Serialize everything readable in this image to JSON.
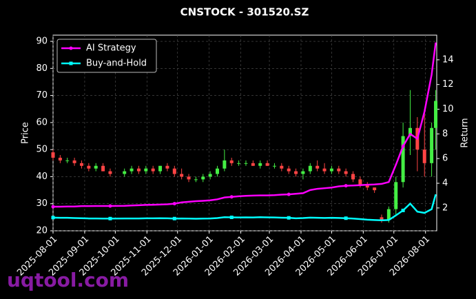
{
  "chart_data": {
    "type": "candlestick",
    "title": "CNSTOCK - 301520.SZ",
    "ylabel": "Price",
    "y2label": "Return",
    "watermark": "uqtool.com",
    "up_color": "#44ee44",
    "down_color": "#ff4444",
    "grid": true,
    "legend": "upper left",
    "x": [
      "2025-08-01",
      "2025-08-08",
      "2025-08-15",
      "2025-08-22",
      "2025-08-29",
      "2025-09-05",
      "2025-09-12",
      "2025-09-19",
      "2025-09-26",
      "2025-10-10",
      "2025-10-17",
      "2025-10-24",
      "2025-10-31",
      "2025-11-07",
      "2025-11-14",
      "2025-11-21",
      "2025-11-28",
      "2025-12-05",
      "2025-12-12",
      "2025-12-19",
      "2025-12-26",
      "2026-01-02",
      "2026-01-09",
      "2026-01-16",
      "2026-01-23",
      "2026-01-30",
      "2026-02-06",
      "2026-02-13",
      "2026-02-20",
      "2026-02-27",
      "2026-03-06",
      "2026-03-13",
      "2026-03-20",
      "2026-03-27",
      "2026-04-03",
      "2026-04-10",
      "2026-04-17",
      "2026-04-24",
      "2026-05-01",
      "2026-05-08",
      "2026-05-15",
      "2026-05-22",
      "2026-05-29",
      "2026-06-05",
      "2026-06-12",
      "2026-06-19",
      "2026-06-26",
      "2026-07-03",
      "2026-07-10",
      "2026-07-17",
      "2026-07-24",
      "2026-07-31",
      "2026-08-07",
      "2026-08-11"
    ],
    "open": [
      49,
      47,
      46,
      46,
      45,
      44,
      43,
      44,
      42,
      41,
      42,
      43,
      42,
      43,
      42,
      44,
      43,
      41,
      40,
      39,
      39,
      40,
      41,
      43,
      46,
      45,
      45,
      45,
      44,
      45,
      44,
      44,
      43,
      42,
      41,
      42,
      44,
      43,
      42,
      43,
      42,
      41,
      39,
      37,
      36,
      25,
      24,
      28,
      38,
      55,
      58,
      50,
      45,
      58
    ],
    "high": [
      50,
      48,
      47,
      47,
      46,
      45,
      45,
      45,
      43,
      43,
      44,
      44,
      44,
      44,
      44,
      45,
      44,
      43,
      41,
      40,
      41,
      42,
      44,
      50,
      47,
      46,
      46,
      46,
      46,
      46,
      45,
      45,
      44,
      43,
      43,
      45,
      46,
      45,
      44,
      44,
      43,
      42,
      40,
      38,
      36,
      26,
      29,
      40,
      60,
      72,
      62,
      65,
      60,
      72
    ],
    "low": [
      46,
      45,
      45,
      44,
      43,
      42,
      42,
      42,
      40,
      40,
      41,
      41,
      41,
      41,
      41,
      42,
      40,
      39,
      38,
      38,
      38,
      39,
      40,
      42,
      44,
      44,
      44,
      44,
      43,
      44,
      43,
      42,
      41,
      40,
      39,
      41,
      42,
      41,
      41,
      41,
      40,
      38,
      36,
      35,
      34,
      23,
      23,
      26,
      36,
      48,
      42,
      40,
      40,
      50
    ],
    "close": [
      47,
      46,
      46,
      45,
      44,
      43,
      44,
      42,
      41,
      42,
      43,
      42,
      43,
      42,
      44,
      43,
      41,
      40,
      39,
      39,
      40,
      41,
      43,
      46,
      45,
      45,
      45,
      44,
      45,
      44,
      44,
      43,
      42,
      41,
      42,
      44,
      43,
      42,
      43,
      42,
      41,
      39,
      37,
      36,
      35,
      24,
      28,
      38,
      55,
      58,
      50,
      45,
      58,
      68
    ],
    "series": [
      {
        "name": "AI Strategy",
        "color": "#ff00ff",
        "axis": "y2",
        "marker": "circle",
        "values": [
          2.1,
          2.1,
          2.12,
          2.12,
          2.15,
          2.15,
          2.16,
          2.16,
          2.16,
          2.17,
          2.2,
          2.22,
          2.25,
          2.26,
          2.28,
          2.3,
          2.35,
          2.45,
          2.5,
          2.55,
          2.58,
          2.62,
          2.7,
          2.85,
          2.9,
          2.95,
          2.98,
          3.0,
          3.02,
          3.02,
          3.04,
          3.08,
          3.1,
          3.15,
          3.2,
          3.45,
          3.55,
          3.6,
          3.65,
          3.75,
          3.8,
          3.82,
          3.85,
          3.88,
          3.9,
          3.95,
          4.1,
          5.5,
          7.0,
          8.0,
          7.6,
          9.8,
          12.8,
          15.4
        ]
      },
      {
        "name": "Buy-and-Hold",
        "color": "#00ffff",
        "axis": "y2",
        "marker": "square",
        "values": [
          1.22,
          1.2,
          1.2,
          1.18,
          1.17,
          1.15,
          1.15,
          1.14,
          1.14,
          1.15,
          1.15,
          1.15,
          1.16,
          1.16,
          1.17,
          1.16,
          1.14,
          1.15,
          1.14,
          1.13,
          1.14,
          1.15,
          1.18,
          1.25,
          1.24,
          1.23,
          1.24,
          1.23,
          1.25,
          1.24,
          1.23,
          1.21,
          1.2,
          1.16,
          1.18,
          1.22,
          1.2,
          1.19,
          1.2,
          1.19,
          1.17,
          1.14,
          1.1,
          1.05,
          1.02,
          1.0,
          1.02,
          1.4,
          1.8,
          2.35,
          1.7,
          1.6,
          1.9,
          3.1
        ]
      }
    ],
    "xlim": [
      "2025-08-01",
      "2026-08-12"
    ],
    "xticks": [
      "2025-08-01",
      "2025-09-01",
      "2025-10-01",
      "2025-11-01",
      "2025-12-01",
      "2026-01-01",
      "2026-02-01",
      "2026-03-01",
      "2026-04-01",
      "2026-05-01",
      "2026-06-01",
      "2026-07-01",
      "2026-08-01"
    ],
    "ylim": [
      20,
      92.3
    ],
    "yticks": [
      20,
      30,
      40,
      50,
      60,
      70,
      80,
      90
    ],
    "y2lim": [
      0.15,
      16.0
    ],
    "y2ticks": [
      2,
      4,
      6,
      8,
      10,
      12,
      14
    ]
  }
}
